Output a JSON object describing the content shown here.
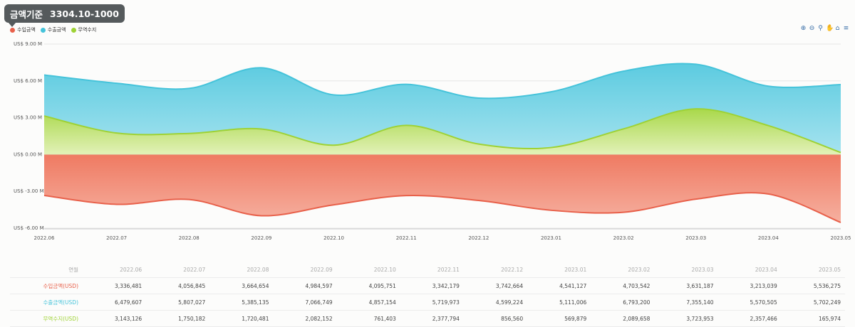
{
  "header": {
    "title": "금액기준",
    "code": "3304.10-1000"
  },
  "legend": [
    {
      "label": "수입금액",
      "color": "#e8604a"
    },
    {
      "label": "수출금액",
      "color": "#45c3da"
    },
    {
      "label": "무역수지",
      "color": "#9ed235"
    }
  ],
  "toolbar": [
    "zoom-in-icon",
    "zoom-out-icon",
    "magnify-icon",
    "pan-hand-icon",
    "home-icon",
    "menu-icon"
  ],
  "chart_data": {
    "type": "area",
    "categories": [
      "2022.06",
      "2022.07",
      "2022.08",
      "2022.09",
      "2022.10",
      "2022.11",
      "2022.12",
      "2023.01",
      "2023.02",
      "2023.03",
      "2023.04",
      "2023.05"
    ],
    "y_tick_labels": [
      "US$ 9.00 M",
      "US$ 6.00 M",
      "US$ 3.00 M",
      "US$ 0.00 M",
      "US$ -3.00 M",
      "US$ -6.00 M"
    ],
    "ylim": [
      -6,
      9
    ],
    "series": [
      {
        "name": "수입금액",
        "color": "#e8604a",
        "values": [
          -3.336481,
          -4.056845,
          -3.664654,
          -4.984597,
          -4.095751,
          -3.342179,
          -3.742664,
          -4.541127,
          -4.703542,
          -3.631187,
          -3.213039,
          -5.536275
        ]
      },
      {
        "name": "수출금액",
        "color": "#45c3da",
        "values": [
          6.479607,
          5.807027,
          5.385135,
          7.066749,
          4.857154,
          5.719973,
          4.599224,
          5.111006,
          6.7932,
          7.35514,
          5.570505,
          5.702249
        ]
      },
      {
        "name": "무역수지",
        "color": "#9ed235",
        "values": [
          3.143126,
          1.750182,
          1.720481,
          2.082152,
          0.761403,
          2.377794,
          0.85656,
          0.569879,
          2.089658,
          3.723953,
          2.357466,
          0.165974
        ]
      }
    ]
  },
  "table": {
    "header_label": "연월",
    "columns": [
      "2022.06",
      "2022.07",
      "2022.08",
      "2022.09",
      "2022.10",
      "2022.11",
      "2022.12",
      "2023.01",
      "2023.02",
      "2023.03",
      "2023.04",
      "2023.05"
    ],
    "rows": [
      {
        "label": "수입금액(USD)",
        "color": "#e8604a",
        "values": [
          "3,336,481",
          "4,056,845",
          "3,664,654",
          "4,984,597",
          "4,095,751",
          "3,342,179",
          "3,742,664",
          "4,541,127",
          "4,703,542",
          "3,631,187",
          "3,213,039",
          "5,536,275"
        ]
      },
      {
        "label": "수출금액(USD)",
        "color": "#45c3da",
        "values": [
          "6,479,607",
          "5,807,027",
          "5,385,135",
          "7,066,749",
          "4,857,154",
          "5,719,973",
          "4,599,224",
          "5,111,006",
          "6,793,200",
          "7,355,140",
          "5,570,505",
          "5,702,249"
        ]
      },
      {
        "label": "무역수지(USD)",
        "color": "#9ed235",
        "values": [
          "3,143,126",
          "1,750,182",
          "1,720,481",
          "2,082,152",
          "761,403",
          "2,377,794",
          "856,560",
          "569,879",
          "2,089,658",
          "3,723,953",
          "2,357,466",
          "165,974"
        ]
      }
    ]
  }
}
